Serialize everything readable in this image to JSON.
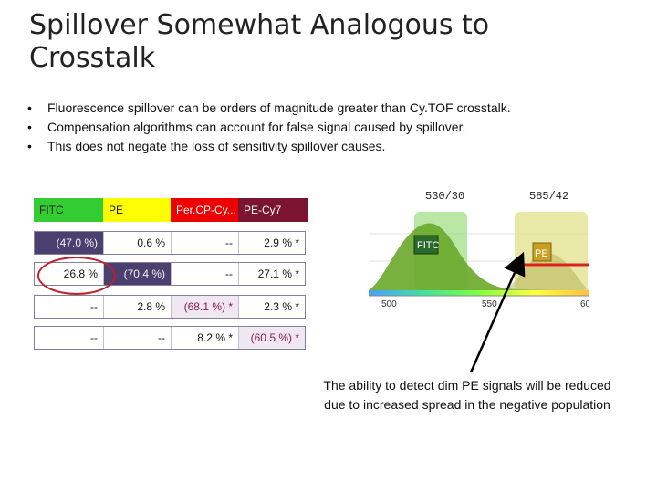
{
  "title": "Spillover Somewhat Analogous to Crosstalk",
  "bullets": [
    "Fluorescence spillover can be orders of magnitude greater than Cy.TOF crosstalk.",
    "Compensation algorithms can account for false signal caused by spillover.",
    "This does not negate the loss of sensitivity spillover causes."
  ],
  "table": {
    "headers": [
      "FITC",
      "PE",
      "Per.CP-Cy...",
      "PE-Cy7"
    ],
    "rows": [
      [
        "(47.0 %)",
        "0.6 %",
        "--",
        "2.9 % *"
      ],
      [
        "26.8 %",
        "(70.4 %)",
        "--",
        "27.1 % *"
      ],
      [
        "--",
        "2.8 %",
        "(68.1 %) *",
        "2.3 % *"
      ],
      [
        "--",
        "--",
        "8.2 % *",
        "(60.5 %) *"
      ]
    ]
  },
  "histogram": {
    "filter_labels": [
      "530/30",
      "585/42"
    ],
    "peak_labels": [
      "FITC",
      "PE"
    ],
    "axis_ticks": [
      "500",
      "550",
      "60"
    ],
    "colors": {
      "fitc_band": "#8ad86a",
      "pe_band": "#e0e08a",
      "curve_fill": "#6aa82a",
      "red_line": "#e02020"
    }
  },
  "caption": "The ability to detect dim PE signals will be reduced due to increased spread in the negative population"
}
